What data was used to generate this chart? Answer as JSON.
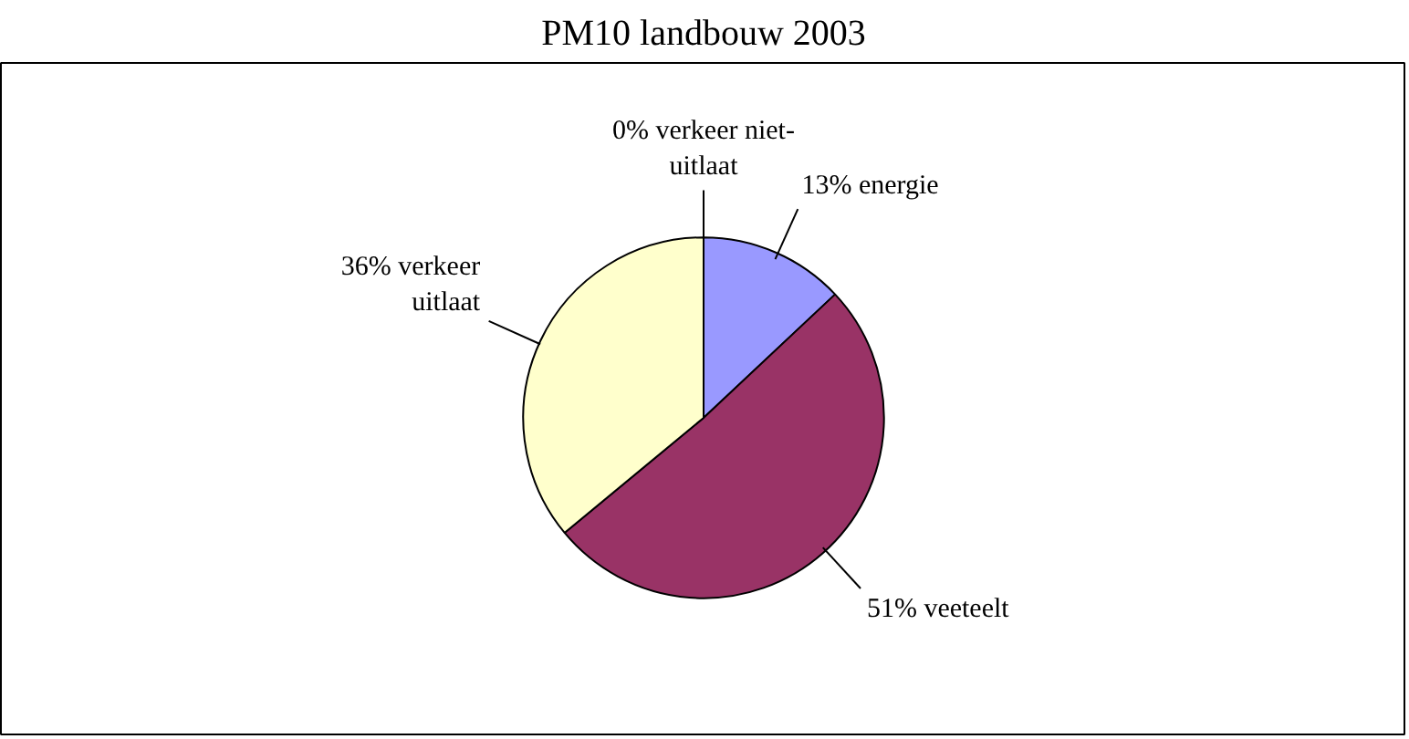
{
  "chart_data": {
    "type": "pie",
    "title": "PM10 landbouw 2003",
    "categories": [
      "energie",
      "veeteelt",
      "verkeer uitlaat",
      "verkeer niet-uitlaat"
    ],
    "values": [
      13,
      51,
      36,
      0
    ],
    "colors": [
      "#9999ff",
      "#993366",
      "#ffffcc",
      "#ffffff"
    ],
    "value_labels": [
      "13%",
      "51%",
      "36%",
      "0%"
    ]
  }
}
